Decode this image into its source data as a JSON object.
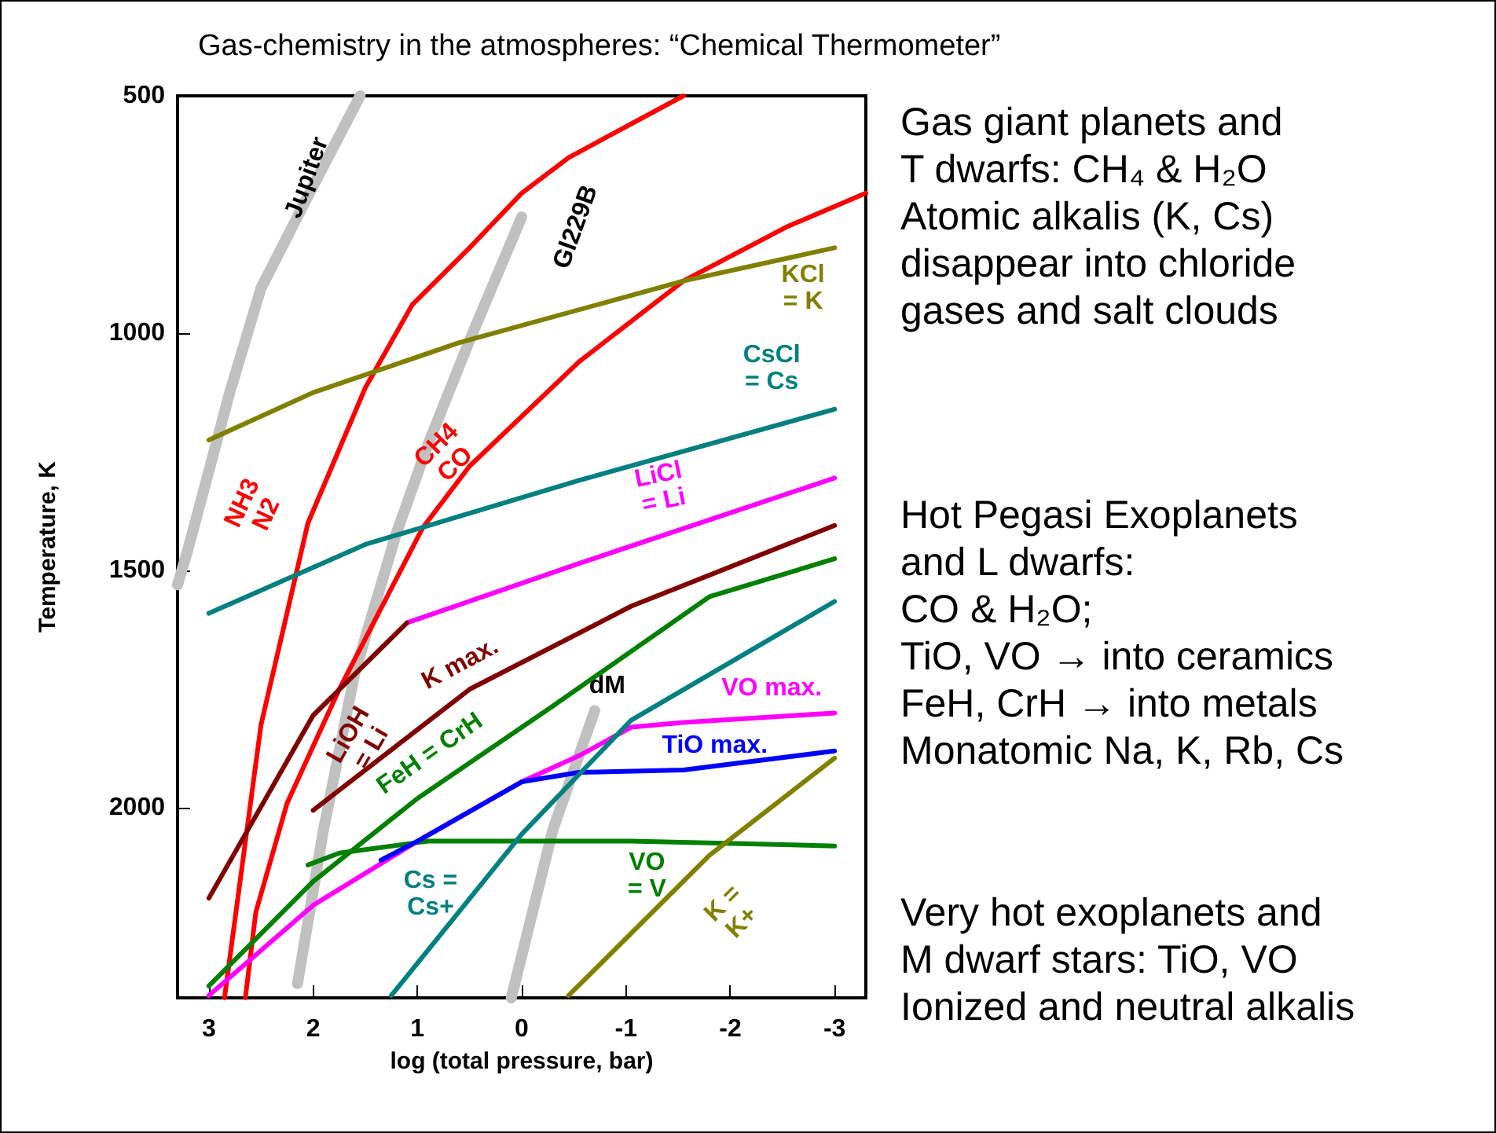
{
  "chart_data": {
    "type": "line",
    "title": "Gas-chemistry in the atmospheres: “Chemical Thermometer”",
    "xlabel": "log (total pressure, bar)",
    "ylabel": "Temperature, K",
    "xlim": [
      3.3,
      -3.3
    ],
    "xticks": [
      3,
      2,
      1,
      0,
      -1,
      -2,
      -3
    ],
    "ylim": [
      2400,
      500
    ],
    "yticks": [
      500,
      1000,
      1500,
      2000
    ],
    "grid": false,
    "legend": false,
    "marker": "none",
    "line_style": "solid",
    "series": [
      {
        "name": "Jupiter",
        "color": "#c0c0c0",
        "x": [
          1.55,
          2.0,
          2.5,
          2.8,
          3.2,
          3.3
        ],
        "values": [
          500,
          690,
          905,
          1125,
          1455,
          1530
        ]
      },
      {
        "name": "Gl229B",
        "color": "#c0c0c0",
        "x": [
          0.0,
          0.5,
          0.9,
          1.2,
          1.6,
          1.9,
          2.15
        ],
        "values": [
          755,
          1015,
          1235,
          1420,
          1715,
          2045,
          2370
        ]
      },
      {
        "name": "dM",
        "color": "#c0c0c0",
        "x": [
          -0.7,
          -0.3,
          0.1
        ],
        "values": [
          1795,
          2045,
          2400
        ]
      },
      {
        "name": "NH3\nN2",
        "color": "#ff0000",
        "x": [
          -1.55,
          -0.45,
          0.0,
          0.5,
          1.05,
          1.5,
          2.05,
          2.5,
          2.85
        ],
        "values": [
          500,
          630,
          705,
          820,
          940,
          1115,
          1400,
          1825,
          2400
        ]
      },
      {
        "name": "CH4\nCO",
        "color": "#ff0000",
        "x": [
          -3.3,
          -2.55,
          -1.55,
          -0.55,
          0.5,
          0.95,
          1.75,
          2.25,
          2.55,
          2.65
        ],
        "values": [
          705,
          775,
          890,
          1060,
          1280,
          1410,
          1750,
          1990,
          2220,
          2400
        ]
      },
      {
        "name": "KCl\n= K",
        "color": "#808000",
        "x": [
          3.0,
          2.0,
          0.6,
          -1.55,
          -3.0
        ],
        "values": [
          1225,
          1125,
          1020,
          890,
          820
        ]
      },
      {
        "name": "CsCl\n= Cs",
        "color": "#008080",
        "x": [
          3.0,
          1.5,
          -0.55,
          -3.0
        ],
        "values": [
          1590,
          1445,
          1310,
          1160
        ]
      },
      {
        "name": "LiCl\n= Li",
        "color": "#ff00ff",
        "x": [
          1.1,
          -0.55,
          -3.0
        ],
        "values": [
          1610,
          1485,
          1305
        ]
      },
      {
        "name": "LiOH\n= Li",
        "color": "#800000",
        "x": [
          3.0,
          2.0,
          1.1
        ],
        "values": [
          2190,
          1805,
          1610
        ]
      },
      {
        "name": "K max.",
        "color": "#800000",
        "x": [
          2.0,
          0.5,
          -1.05,
          -3.0
        ],
        "values": [
          2005,
          1750,
          1575,
          1405
        ]
      },
      {
        "name": "FeH = CrH",
        "color": "#008000",
        "x": [
          3.0,
          2.0,
          1.0,
          -0.3,
          -1.8,
          -3.0
        ],
        "values": [
          2375,
          2155,
          1980,
          1785,
          1555,
          1475
        ]
      },
      {
        "name": "VO\n= V",
        "color": "#008000",
        "x": [
          2.05,
          1.75,
          0.9,
          -1.05,
          -3.0
        ],
        "values": [
          2120,
          2095,
          2070,
          2070,
          2080
        ]
      },
      {
        "name": "VO max.",
        "color": "#ff00ff",
        "x": [
          3.0,
          2.0,
          1.0,
          0.0,
          -0.55,
          -1.05,
          -1.55,
          -3.0
        ],
        "values": [
          2395,
          2205,
          2070,
          1945,
          1890,
          1830,
          1820,
          1800
        ]
      },
      {
        "name": "TiO max.",
        "color": "#0000ff",
        "x": [
          1.35,
          1.0,
          0.0,
          -0.55,
          -1.55,
          -3.0
        ],
        "values": [
          2110,
          2070,
          1945,
          1925,
          1920,
          1880
        ]
      },
      {
        "name": "Cs =\nCs+",
        "color": "#008080",
        "x": [
          1.25,
          0.0,
          -1.05,
          -3.0
        ],
        "values": [
          2395,
          2055,
          1815,
          1565
        ]
      },
      {
        "name": "K =\nK+",
        "color": "#808000",
        "x": [
          -0.45,
          -1.8,
          -3.0
        ],
        "values": [
          2395,
          2100,
          1895
        ]
      }
    ],
    "annotations": [
      "Gas giant planets and\nT dwarfs: CH₄ & H₂O\nAtomic alkalis (K, Cs)\ndisappear into chloride\ngases and salt clouds",
      "Hot Pegasi Exoplanets\nand L dwarfs:\nCO & H₂O;\nTiO, VO → into ceramics\nFeH, CrH → into metals\nMonatomic Na, K, Rb, Cs",
      "Very hot exoplanets and\nM dwarf stars: TiO, VO\nIonized and neutral alkalis"
    ]
  }
}
